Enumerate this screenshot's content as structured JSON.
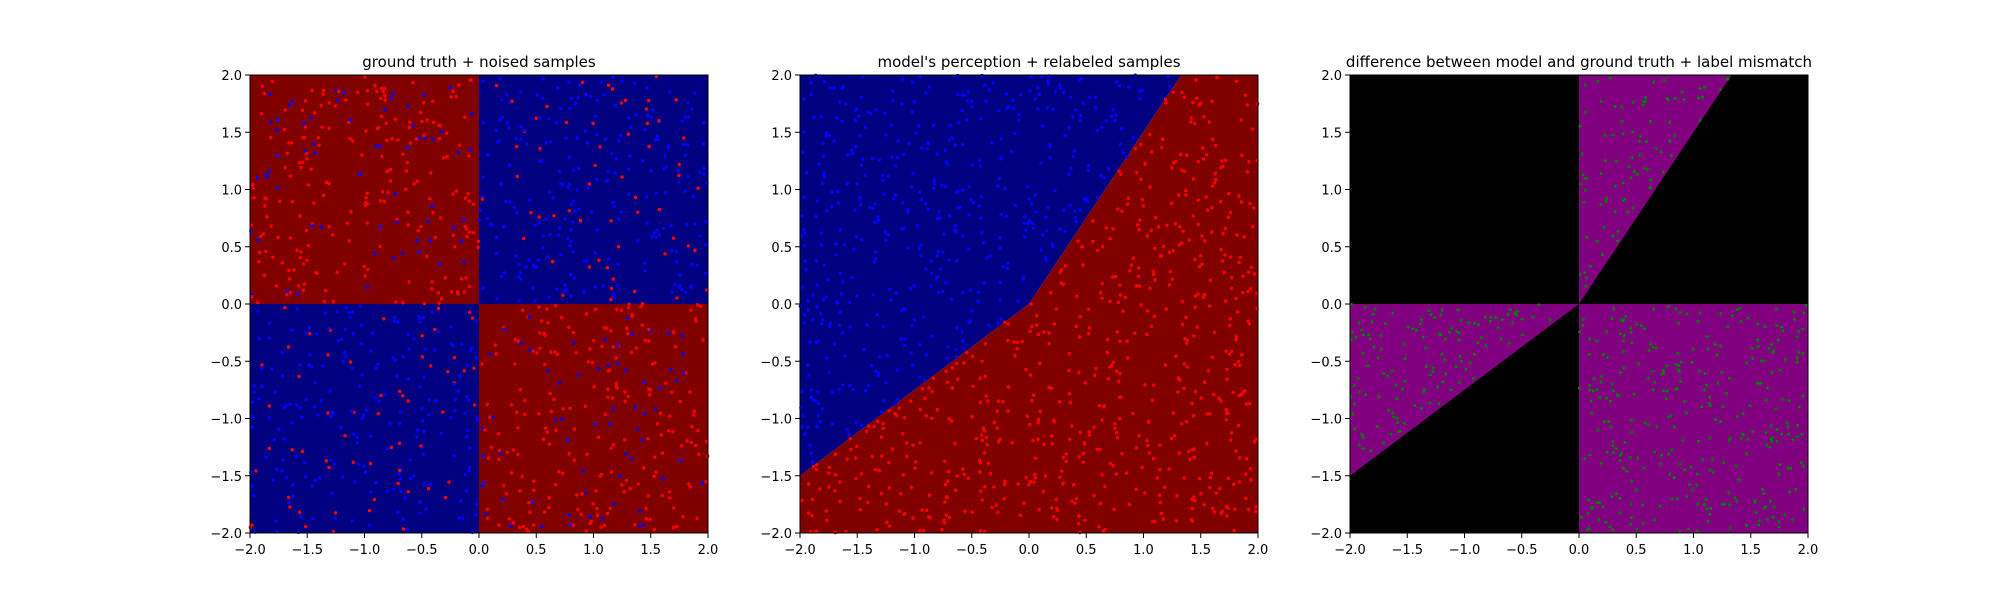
{
  "colors": {
    "region_red": "#800000",
    "region_blue": "#000080",
    "point_red": "#ff0000",
    "point_blue": "#0000ff",
    "diff_match": "#000000",
    "diff_mismatch": "#800080",
    "mismatch_point": "#008000"
  },
  "chart_data": [
    {
      "type": "scatter",
      "title": "ground truth + noised samples",
      "background": "xor_quadrants",
      "xlim": [
        -2.0,
        2.0
      ],
      "ylim": [
        -2.0,
        2.0
      ],
      "xticks": [
        "−2.0",
        "−1.5",
        "−1.0",
        "−0.5",
        "0.0",
        "0.5",
        "1.0",
        "1.5",
        "2.0"
      ],
      "yticks": [
        "−2.0",
        "−1.5",
        "−1.0",
        "−0.5",
        "0.0",
        "0.5",
        "1.0",
        "1.5",
        "2.0"
      ],
      "series": [
        {
          "color": "red",
          "count": 560
        },
        {
          "color": "blue",
          "count": 560
        }
      ]
    },
    {
      "type": "scatter",
      "title": "model's perception + relabeled samples",
      "background": "model_boundary",
      "boundary": [
        [
          -2.0,
          -1.5
        ],
        [
          0.0,
          0.0
        ],
        [
          1.33,
          2.0
        ]
      ],
      "xlim": [
        -2.0,
        2.0
      ],
      "ylim": [
        -2.0,
        2.0
      ],
      "xticks": [
        "−2.0",
        "−1.5",
        "−1.0",
        "−0.5",
        "0.0",
        "0.5",
        "1.0",
        "1.5",
        "2.0"
      ],
      "yticks": [
        "−2.0",
        "−1.5",
        "−1.0",
        "−0.5",
        "0.0",
        "0.5",
        "1.0",
        "1.5",
        "2.0"
      ],
      "series": [
        {
          "color": "blue",
          "count": 560
        },
        {
          "color": "red",
          "count": 560
        }
      ]
    },
    {
      "type": "scatter",
      "title": "difference between model and ground truth + label mismatch",
      "background": "difference",
      "xlim": [
        -2.0,
        2.0
      ],
      "ylim": [
        -2.0,
        2.0
      ],
      "xticks": [
        "−2.0",
        "−1.5",
        "−1.0",
        "−0.5",
        "0.0",
        "0.5",
        "1.0",
        "1.5",
        "2.0"
      ],
      "yticks": [
        "−2.0",
        "−1.5",
        "−1.0",
        "−0.5",
        "0.0",
        "0.5",
        "1.0",
        "1.5",
        "2.0"
      ],
      "series": [
        {
          "color": "green",
          "count": 520
        }
      ]
    }
  ]
}
